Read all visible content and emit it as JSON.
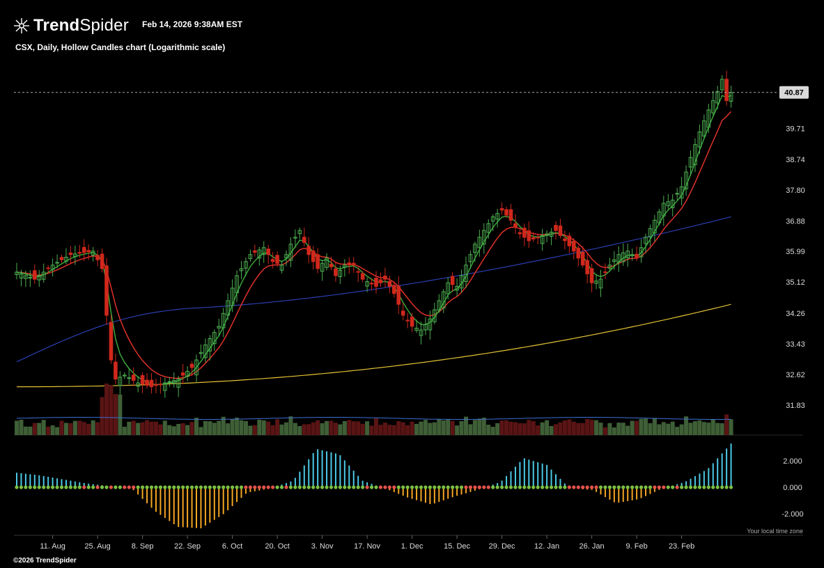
{
  "header": {
    "brand_bold": "Trend",
    "brand_light": "Spider",
    "timestamp": "Feb 14, 2026 9:38AM EST",
    "subtitle": "CSX, Daily, Hollow Candles chart (Logarithmic scale)"
  },
  "footer": {
    "copyright": "©2026 TrendSpider",
    "timezone_note": "Your local time zone"
  },
  "colors": {
    "background": "#000000",
    "up": "#4caf50",
    "down": "#d0281c",
    "ema_fast": "#3aa63a",
    "ema_slow": "#e0312a",
    "sma_mid": "#2b3fb0",
    "sma_long": "#e3c234",
    "hist_pos": "#4cc8e6",
    "hist_neg": "#f5a623",
    "dot_green": "#7bc043",
    "dot_red": "#e5534b",
    "volume_up": "#3f5f37",
    "volume_down": "#5a1414",
    "volume_avg": "#3d6fd6"
  },
  "chart_data": {
    "type": "candlestick",
    "symbol": "CSX",
    "interval": "Daily",
    "style": "Hollow Candles",
    "scale": "log",
    "last_price": "40.87",
    "y_ticks": [
      "39.71",
      "38.74",
      "37.80",
      "36.88",
      "35.99",
      "35.12",
      "34.26",
      "33.43",
      "32.62",
      "31.83"
    ],
    "ylim": [
      31.6,
      41.9
    ],
    "x_ticks": [
      "11. Aug",
      "25. Aug",
      "8. Sep",
      "22. Sep",
      "6. Oct",
      "20. Oct",
      "3. Nov",
      "17. Nov",
      "1. Dec",
      "15. Dec",
      "29. Dec",
      "12. Jan",
      "26. Jan",
      "9. Feb",
      "23. Feb"
    ],
    "close_anchors": [
      {
        "d": 0,
        "v": 35.4
      },
      {
        "d": 4,
        "v": 35.2
      },
      {
        "d": 8,
        "v": 35.6
      },
      {
        "d": 12,
        "v": 35.9
      },
      {
        "d": 17,
        "v": 36.0
      },
      {
        "d": 19,
        "v": 35.5
      },
      {
        "d": 20,
        "v": 34.2
      },
      {
        "d": 21,
        "v": 33.0
      },
      {
        "d": 22,
        "v": 32.5
      },
      {
        "d": 24,
        "v": 32.6
      },
      {
        "d": 27,
        "v": 32.4
      },
      {
        "d": 30,
        "v": 32.3
      },
      {
        "d": 33,
        "v": 32.4
      },
      {
        "d": 36,
        "v": 32.5
      },
      {
        "d": 39,
        "v": 32.8
      },
      {
        "d": 42,
        "v": 33.4
      },
      {
        "d": 45,
        "v": 33.9
      },
      {
        "d": 47,
        "v": 34.6
      },
      {
        "d": 49,
        "v": 35.3
      },
      {
        "d": 52,
        "v": 35.9
      },
      {
        "d": 55,
        "v": 36.1
      },
      {
        "d": 57,
        "v": 35.7
      },
      {
        "d": 59,
        "v": 35.6
      },
      {
        "d": 61,
        "v": 36.2
      },
      {
        "d": 63,
        "v": 36.6
      },
      {
        "d": 65,
        "v": 35.9
      },
      {
        "d": 67,
        "v": 35.5
      },
      {
        "d": 69,
        "v": 35.8
      },
      {
        "d": 71,
        "v": 35.3
      },
      {
        "d": 73,
        "v": 35.6
      },
      {
        "d": 75,
        "v": 35.6
      },
      {
        "d": 77,
        "v": 35.2
      },
      {
        "d": 80,
        "v": 35.0
      },
      {
        "d": 82,
        "v": 35.2
      },
      {
        "d": 84,
        "v": 34.8
      },
      {
        "d": 86,
        "v": 34.2
      },
      {
        "d": 88,
        "v": 33.9
      },
      {
        "d": 90,
        "v": 33.8
      },
      {
        "d": 92,
        "v": 34.1
      },
      {
        "d": 94,
        "v": 34.6
      },
      {
        "d": 96,
        "v": 35.1
      },
      {
        "d": 98,
        "v": 35.0
      },
      {
        "d": 100,
        "v": 35.6
      },
      {
        "d": 102,
        "v": 36.2
      },
      {
        "d": 104,
        "v": 36.6
      },
      {
        "d": 106,
        "v": 37.0
      },
      {
        "d": 108,
        "v": 37.2
      },
      {
        "d": 110,
        "v": 36.9
      },
      {
        "d": 112,
        "v": 36.5
      },
      {
        "d": 114,
        "v": 36.3
      },
      {
        "d": 116,
        "v": 36.4
      },
      {
        "d": 118,
        "v": 36.5
      },
      {
        "d": 120,
        "v": 36.6
      },
      {
        "d": 122,
        "v": 36.3
      },
      {
        "d": 124,
        "v": 36.0
      },
      {
        "d": 126,
        "v": 35.6
      },
      {
        "d": 128,
        "v": 35.1
      },
      {
        "d": 130,
        "v": 35.2
      },
      {
        "d": 132,
        "v": 35.6
      },
      {
        "d": 134,
        "v": 35.9
      },
      {
        "d": 136,
        "v": 36.0
      },
      {
        "d": 138,
        "v": 35.8
      },
      {
        "d": 140,
        "v": 36.4
      },
      {
        "d": 142,
        "v": 36.9
      },
      {
        "d": 144,
        "v": 37.4
      },
      {
        "d": 146,
        "v": 37.5
      },
      {
        "d": 148,
        "v": 37.9
      },
      {
        "d": 150,
        "v": 38.8
      },
      {
        "d": 152,
        "v": 39.6
      },
      {
        "d": 154,
        "v": 40.3
      },
      {
        "d": 156,
        "v": 40.9
      },
      {
        "d": 157,
        "v": 41.3
      },
      {
        "d": 158,
        "v": 40.6
      },
      {
        "d": 159,
        "v": 40.87
      }
    ],
    "sma_mid": {
      "start": 32.95,
      "end": 37.0
    },
    "sma_long": {
      "start": 32.3,
      "end": 34.5
    },
    "histogram_pattern": [
      1.1,
      0.9,
      0.6,
      0.3,
      0.1,
      -0.1,
      -1.8,
      -3.0,
      -3.1,
      -2.0,
      -0.4,
      -0.1,
      0.5,
      2.9,
      2.5,
      0.5,
      -0.1,
      -0.8,
      -1.3,
      -0.7,
      -0.2,
      0.4,
      2.2,
      1.7,
      -0.1,
      -0.2,
      -1.2,
      -0.9,
      -0.1,
      0.4,
      1.4,
      3.3
    ],
    "histogram_ticks": [
      "2.000",
      "0.000",
      "-2.000"
    ]
  }
}
